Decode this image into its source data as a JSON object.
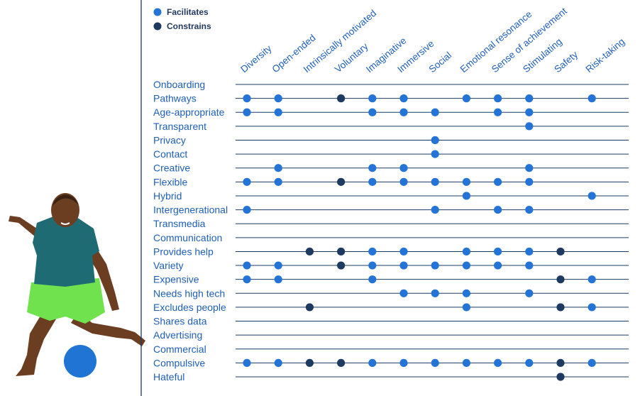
{
  "chart_data": {
    "type": "dot-matrix",
    "legend": [
      {
        "key": "F",
        "label": "Facilitates",
        "color": "#2374d6"
      },
      {
        "key": "C",
        "label": "Constrains",
        "color": "#1e3a60"
      }
    ],
    "legend_position": "top-left",
    "columns": [
      "Diversity",
      "Open-ended",
      "Intrinsically motivated",
      "Voluntary",
      "Imaginative",
      "Immersive",
      "Social",
      "Emotional resonance",
      "Sense of achievement",
      "Stimulating",
      "Safety",
      "Risk-taking"
    ],
    "rows": [
      {
        "label": "Onboarding",
        "values": [
          "",
          "",
          "",
          "",
          "",
          "",
          "",
          "",
          "",
          "",
          "",
          ""
        ]
      },
      {
        "label": "Pathways",
        "values": [
          "F",
          "F",
          "",
          "C",
          "F",
          "F",
          "",
          "F",
          "F",
          "F",
          "",
          "F"
        ]
      },
      {
        "label": "Age-appropriate",
        "values": [
          "F",
          "F",
          "",
          "",
          "F",
          "F",
          "F",
          "",
          "F",
          "F",
          "",
          ""
        ]
      },
      {
        "label": "Transparent",
        "values": [
          "",
          "",
          "",
          "",
          "",
          "",
          "",
          "",
          "",
          "F",
          "",
          ""
        ]
      },
      {
        "label": "Privacy",
        "values": [
          "",
          "",
          "",
          "",
          "",
          "",
          "F",
          "",
          "",
          "",
          "",
          ""
        ]
      },
      {
        "label": "Contact",
        "values": [
          "",
          "",
          "",
          "",
          "",
          "",
          "F",
          "",
          "",
          "",
          "",
          ""
        ]
      },
      {
        "label": "Creative",
        "values": [
          "",
          "F",
          "",
          "",
          "F",
          "F",
          "",
          "",
          "",
          "F",
          "",
          ""
        ]
      },
      {
        "label": "Flexible",
        "values": [
          "F",
          "F",
          "",
          "C",
          "F",
          "F",
          "F",
          "F",
          "F",
          "F",
          "",
          ""
        ]
      },
      {
        "label": "Hybrid",
        "values": [
          "",
          "",
          "",
          "",
          "",
          "",
          "",
          "F",
          "",
          "",
          "",
          "F"
        ]
      },
      {
        "label": "Intergenerational",
        "values": [
          "F",
          "",
          "",
          "",
          "",
          "",
          "F",
          "",
          "F",
          "F",
          "",
          ""
        ]
      },
      {
        "label": "Transmedia",
        "values": [
          "",
          "",
          "",
          "",
          "",
          "",
          "",
          "",
          "",
          "",
          "",
          ""
        ]
      },
      {
        "label": "Communication",
        "values": [
          "",
          "",
          "",
          "",
          "",
          "",
          "",
          "",
          "",
          "",
          "",
          ""
        ]
      },
      {
        "label": "Provides help",
        "values": [
          "",
          "",
          "C",
          "C",
          "F",
          "F",
          "",
          "F",
          "F",
          "F",
          "C",
          ""
        ]
      },
      {
        "label": "Variety",
        "values": [
          "F",
          "F",
          "",
          "C",
          "F",
          "F",
          "F",
          "F",
          "F",
          "F",
          "",
          ""
        ]
      },
      {
        "label": "Expensive",
        "values": [
          "F",
          "F",
          "",
          "",
          "F",
          "",
          "",
          "",
          "",
          "",
          "C",
          "F"
        ]
      },
      {
        "label": "Needs high tech",
        "values": [
          "",
          "",
          "",
          "",
          "",
          "F",
          "F",
          "F",
          "",
          "F",
          "",
          ""
        ]
      },
      {
        "label": "Excludes people",
        "values": [
          "",
          "",
          "C",
          "",
          "",
          "",
          "",
          "F",
          "",
          "",
          "C",
          "F"
        ]
      },
      {
        "label": "Shares data",
        "values": [
          "",
          "",
          "",
          "",
          "",
          "",
          "",
          "",
          "",
          "",
          "",
          ""
        ]
      },
      {
        "label": "Advertising",
        "values": [
          "",
          "",
          "",
          "",
          "",
          "",
          "",
          "",
          "",
          "",
          "",
          ""
        ]
      },
      {
        "label": "Commercial",
        "values": [
          "",
          "",
          "",
          "",
          "",
          "",
          "",
          "",
          "",
          "",
          "",
          ""
        ]
      },
      {
        "label": "Compulsive",
        "values": [
          "F",
          "F",
          "C",
          "C",
          "F",
          "F",
          "F",
          "F",
          "F",
          "F",
          "C",
          "F"
        ]
      },
      {
        "label": "Hateful",
        "values": [
          "",
          "",
          "",
          "",
          "",
          "",
          "",
          "",
          "",
          "",
          "C",
          ""
        ]
      }
    ]
  },
  "colors": {
    "facilitates": "#2374d6",
    "constrains": "#1e3a60",
    "row_line": "#1e3a60",
    "divider": "#1e3a60",
    "label_text": "#1f5fb8",
    "ball": "#1f74d4"
  },
  "illustration": {
    "subject": "child-kicking-ball-illustration"
  }
}
